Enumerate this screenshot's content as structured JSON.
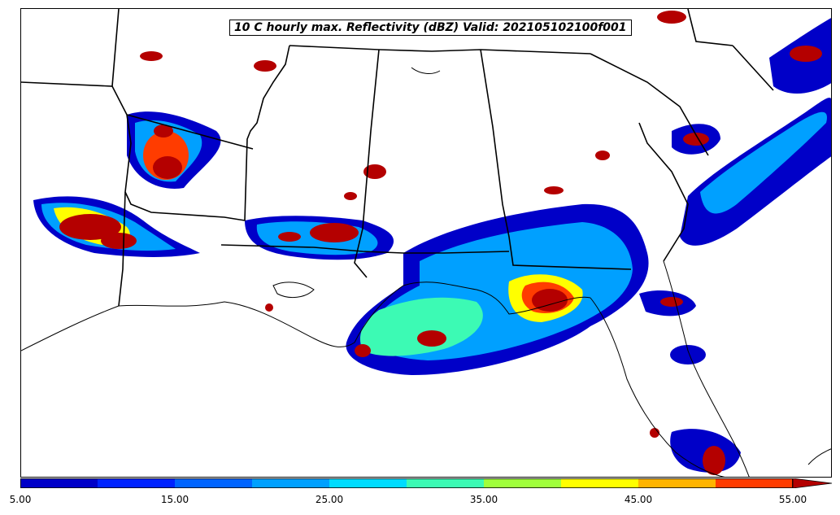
{
  "title": "10 C hourly max. Reflectivity (dBZ) Valid: 202105102100f001",
  "colorbar": {
    "tick_labels": [
      "5.00",
      "15.00",
      "25.00",
      "35.00",
      "45.00",
      "55.00"
    ],
    "levels": [
      5,
      10,
      15,
      20,
      25,
      30,
      35,
      40,
      45,
      50,
      55
    ],
    "colors": [
      "#0000c8",
      "#0023ff",
      "#0064ff",
      "#00a0ff",
      "#00dcff",
      "#3cfab4",
      "#a0ff3c",
      "#ffff00",
      "#ffb400",
      "#ff3c00",
      "#b40000"
    ],
    "extend": "max"
  }
}
